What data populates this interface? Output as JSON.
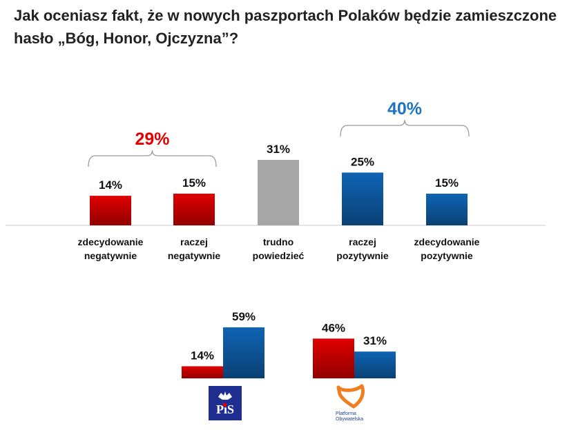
{
  "title_line1": "Jak oceniasz fakt, że w nowych paszportach Polaków będzie zamieszczone",
  "title_line2": "hasło „Bóg, Honor, Ojczyzna”?",
  "chart_data": [
    {
      "type": "bar",
      "title": "Jak oceniasz fakt, że w nowych paszportach Polaków będzie zamieszczone hasło „Bóg, Honor, Ojczyzna”?",
      "categories": [
        [
          "zdecydowanie",
          "negatywnie"
        ],
        [
          "raczej",
          "negatywnie"
        ],
        [
          "trudno",
          "powiedzieć"
        ],
        [
          "raczej",
          "pozytywnie"
        ],
        [
          "zdecydowanie",
          "pozytywnie"
        ]
      ],
      "values": [
        14,
        15,
        31,
        25,
        15
      ],
      "labels": [
        "14%",
        "15%",
        "31%",
        "25%",
        "15%"
      ],
      "colors": [
        "#e00000",
        "#e00000",
        "#a6a6a6",
        "#0f64b4",
        "#0f64b4"
      ],
      "groups": [
        {
          "label": "29%",
          "color": "#e00000",
          "from": 0,
          "to": 1
        },
        {
          "label": "40%",
          "color": "#1f74c0",
          "from": 3,
          "to": 4
        }
      ],
      "ylim": [
        0,
        31
      ]
    },
    {
      "type": "bar",
      "series": [
        {
          "name": "negatywnie",
          "color": "#e00000",
          "values": [
            14,
            46
          ],
          "labels": [
            "14%",
            "46%"
          ]
        },
        {
          "name": "pozytywnie",
          "color": "#0f64b4",
          "values": [
            59,
            31
          ],
          "labels": [
            "59%",
            "31%"
          ]
        }
      ],
      "categories": [
        "PiS",
        "Platforma Obywatelska"
      ],
      "ylim": [
        0,
        59
      ]
    }
  ],
  "logos": {
    "pis_text": "PiS",
    "po_text_line1": "Platforma",
    "po_text_line2": "Obywatelska"
  }
}
